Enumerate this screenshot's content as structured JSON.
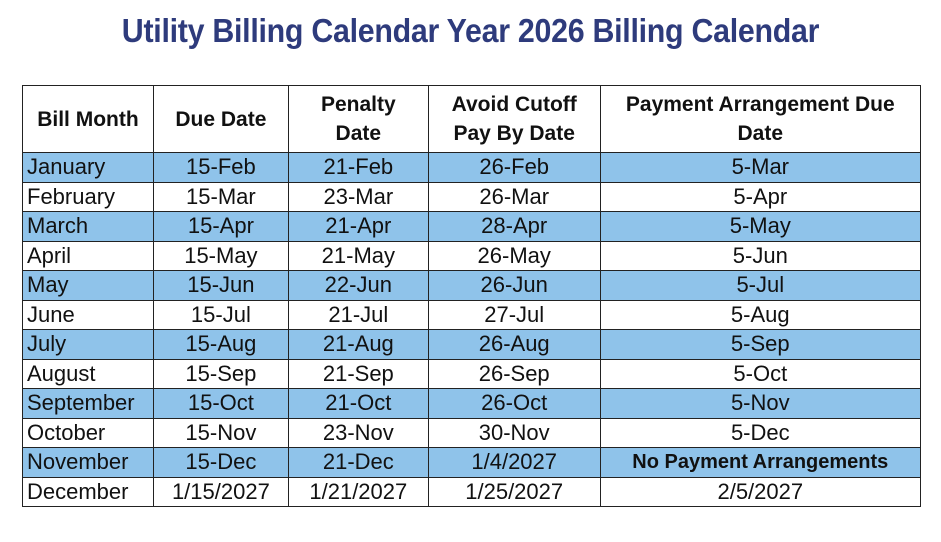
{
  "title": "Utility Billing Calendar Year 2026 Billing Calendar",
  "colors": {
    "row_highlight": "#8fc3ea",
    "title": "#2e3b7c"
  },
  "headers": [
    "Bill Month",
    "Due Date",
    "Penalty Date",
    "Avoid Cutoff Pay By Date",
    "Payment Arrangement Due Date"
  ],
  "rows": [
    [
      "January",
      "15-Feb",
      "21-Feb",
      "26-Feb",
      "5-Mar"
    ],
    [
      "February",
      "15-Mar",
      "23-Mar",
      "26-Mar",
      "5-Apr"
    ],
    [
      "March",
      "15-Apr",
      "21-Apr",
      "28-Apr",
      "5-May"
    ],
    [
      "April",
      "15-May",
      "21-May",
      "26-May",
      "5-Jun"
    ],
    [
      "May",
      "15-Jun",
      "22-Jun",
      "26-Jun",
      "5-Jul"
    ],
    [
      "June",
      "15-Jul",
      "21-Jul",
      "27-Jul",
      "5-Aug"
    ],
    [
      "July",
      "15-Aug",
      "21-Aug",
      "26-Aug",
      "5-Sep"
    ],
    [
      "August",
      "15-Sep",
      "21-Sep",
      "26-Sep",
      "5-Oct"
    ],
    [
      "September",
      "15-Oct",
      "21-Oct",
      "26-Oct",
      "5-Nov"
    ],
    [
      "October",
      "15-Nov",
      "23-Nov",
      "30-Nov",
      "5-Dec"
    ],
    [
      "November",
      "15-Dec",
      "21-Dec",
      "1/4/2027",
      "No Payment Arrangements"
    ],
    [
      "December",
      "1/15/2027",
      "1/21/2027",
      "1/25/2027",
      "2/5/2027"
    ]
  ]
}
